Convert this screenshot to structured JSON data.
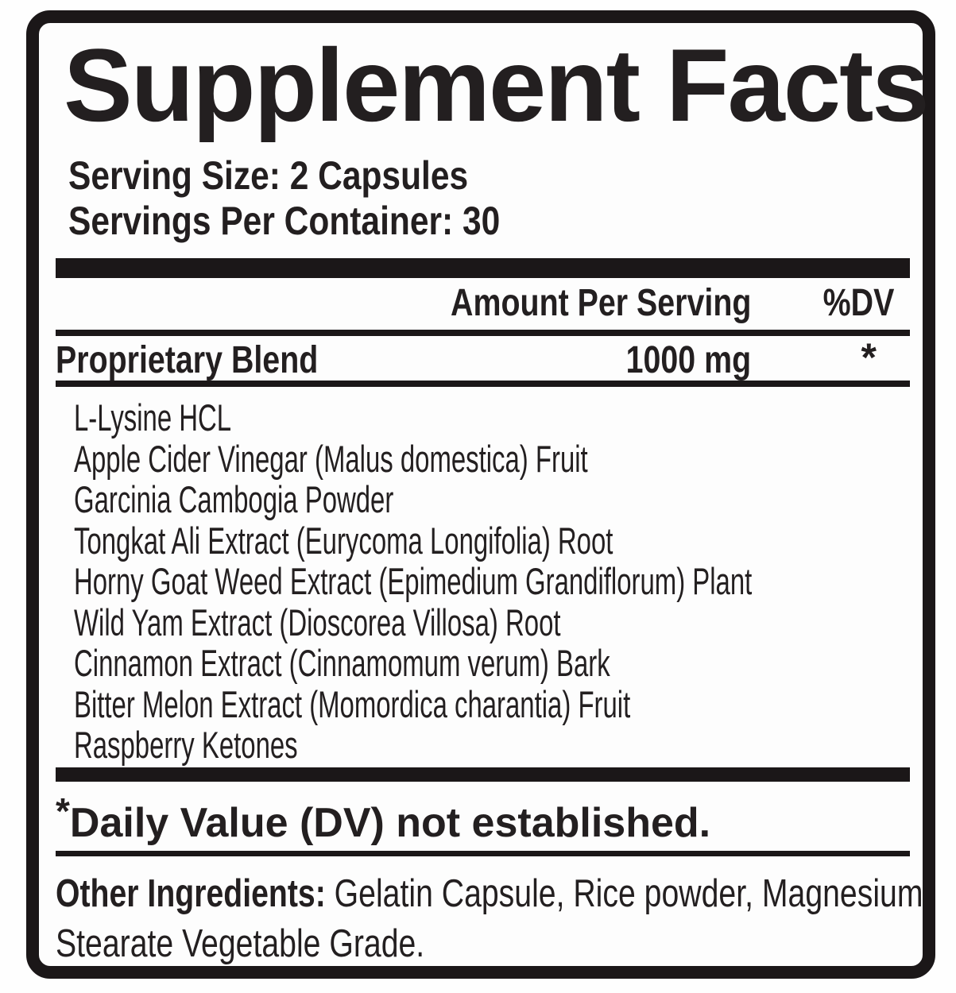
{
  "label": {
    "title": "Supplement Facts",
    "serving_size": "Serving Size: 2 Capsules",
    "servings_per_container": "Servings Per Container: 30",
    "columns": {
      "amount_header": "Amount Per Serving",
      "dv_header": "%DV"
    },
    "blend": {
      "name": "Proprietary Blend",
      "amount": "1000 mg",
      "dv": "*"
    },
    "ingredients": [
      "L-Lysine HCL",
      "Apple Cider Vinegar (Malus domestica) Fruit",
      "Garcinia Cambogia Powder",
      "Tongkat Ali Extract (Eurycoma Longifolia) Root",
      "Horny Goat Weed Extract (Epimedium Grandiflorum) Plant",
      "Wild Yam Extract (Dioscorea Villosa) Root",
      "Cinnamon Extract (Cinnamomum verum) Bark",
      "Bitter Melon Extract (Momordica charantia) Fruit",
      "Raspberry Ketones"
    ],
    "footnote": {
      "symbol": "*",
      "text": "Daily Value (DV) not established."
    },
    "other_ingredients": {
      "label": "Other Ingredients:",
      "line1": " Gelatin Capsule, Rice powder, Magnesium",
      "line2": "Stearate Vegetable Grade."
    },
    "colors": {
      "text": "#231f20",
      "border": "#1b1718",
      "panel_background": "#fdfdfd",
      "page_background": "#ffffff"
    }
  }
}
